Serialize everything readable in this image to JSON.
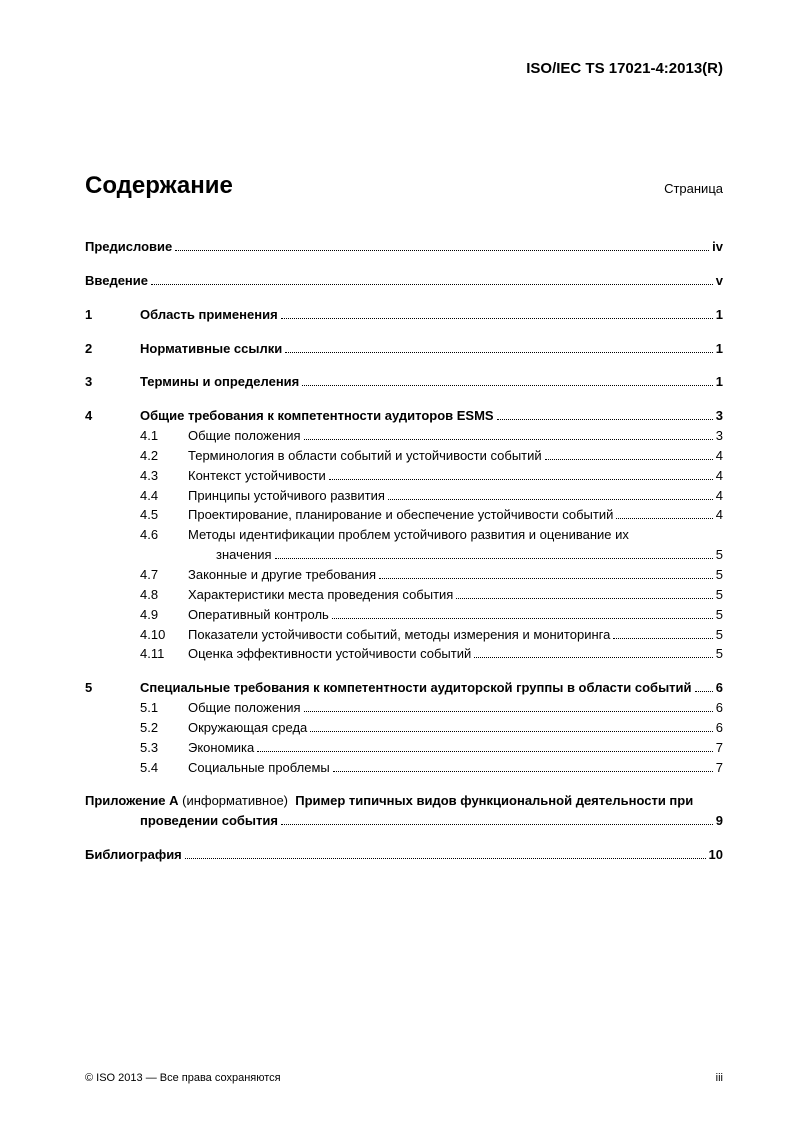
{
  "docId": "ISO/IEC TS 17021-4:2013(R)",
  "title": "Содержание",
  "pageLabel": "Страница",
  "toc": {
    "foreword": {
      "label": "Предисловие",
      "page": "iv"
    },
    "intro": {
      "label": "Введение",
      "page": "v"
    },
    "s1": {
      "num": "1",
      "label": "Область применения",
      "page": "1"
    },
    "s2": {
      "num": "2",
      "label": "Нормативные ссылки",
      "page": "1"
    },
    "s3": {
      "num": "3",
      "label": "Термины и определения",
      "page": "1"
    },
    "s4": {
      "num": "4",
      "label": "Общие требования к компетентности аудиторов ESMS",
      "page": "3",
      "subs": [
        {
          "num": "4.1",
          "label": "Общие положения",
          "page": "3"
        },
        {
          "num": "4.2",
          "label": "Терминология в области событий и устойчивости событий",
          "page": "4"
        },
        {
          "num": "4.3",
          "label": "Контекст устойчивости",
          "page": "4"
        },
        {
          "num": "4.4",
          "label": "Принципы устойчивого развития",
          "page": "4"
        },
        {
          "num": "4.5",
          "label": "Проектирование, планирование и обеспечение устойчивости событий",
          "page": "4"
        },
        {
          "num": "4.6",
          "label1": "Методы идентификации проблем устойчивого развития и оценивание их",
          "label2": "значения",
          "page": "5"
        },
        {
          "num": "4.7",
          "label": "Законные и другие требования",
          "page": "5"
        },
        {
          "num": "4.8",
          "label": "Характеристики места проведения события",
          "page": "5"
        },
        {
          "num": "4.9",
          "label": "Оперативный контроль",
          "page": "5"
        },
        {
          "num": "4.10",
          "label": "Показатели устойчивости событий, методы измерения и мониторинга",
          "page": "5"
        },
        {
          "num": "4.11",
          "label": "Оценка эффективности устойчивости событий",
          "page": "5"
        }
      ]
    },
    "s5": {
      "num": "5",
      "label": "Специальные требования к компетентности аудиторской группы в области событий",
      "page": "6",
      "subs": [
        {
          "num": "5.1",
          "label": "Общие положения",
          "page": "6"
        },
        {
          "num": "5.2",
          "label": "Окружающая среда",
          "page": "6"
        },
        {
          "num": "5.3",
          "label": "Экономика",
          "page": "7"
        },
        {
          "num": "5.4",
          "label": "Социальные проблемы",
          "page": "7"
        }
      ]
    },
    "annexA": {
      "labelBold1": "Приложение A",
      "labelReg": "(информативное)",
      "labelBold2": "Пример типичных видов функциональной деятельности при",
      "labelBold3": "проведении события",
      "page": "9"
    },
    "bib": {
      "label": "Библиография",
      "page": "10"
    }
  },
  "footer": {
    "copyright": "© ISO 2013 — Все права сохраняются",
    "pageNum": "iii"
  }
}
